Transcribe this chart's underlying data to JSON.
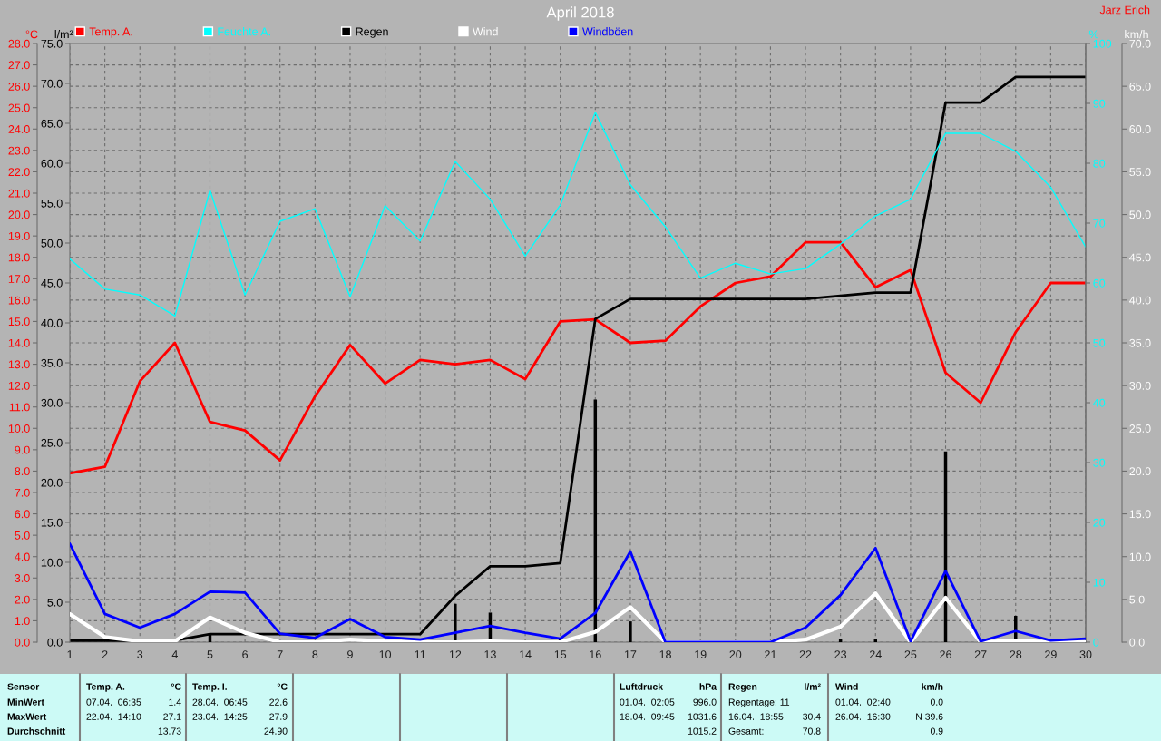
{
  "chart_data": [
    {
      "type": "line",
      "title": "April 2018",
      "x": [
        1,
        2,
        3,
        4,
        5,
        6,
        7,
        8,
        9,
        10,
        11,
        12,
        13,
        14,
        15,
        16,
        17,
        18,
        19,
        20,
        21,
        22,
        23,
        24,
        25,
        26,
        27,
        28,
        29,
        30
      ],
      "xlim": [
        1,
        30
      ],
      "xticks": [
        1,
        2,
        3,
        4,
        5,
        6,
        7,
        8,
        9,
        10,
        11,
        12,
        13,
        14,
        15,
        16,
        17,
        18,
        19,
        20,
        21,
        22,
        23,
        24,
        25,
        26,
        27,
        28,
        29,
        30
      ],
      "ylabel": "°C",
      "y2label": "l/m²",
      "y3label": "%",
      "ylim": [
        0,
        28
      ],
      "yticks": [
        {
          "value": 0,
          "label": "0.0"
        },
        {
          "value": 1,
          "label": "1.0"
        },
        {
          "value": 2,
          "label": "2.0"
        },
        {
          "value": 3,
          "label": "3.0"
        },
        {
          "value": 4,
          "label": "4.0"
        },
        {
          "value": 5,
          "label": "5.0"
        },
        {
          "value": 6,
          "label": "6.0"
        },
        {
          "value": 7,
          "label": "7.0"
        },
        {
          "value": 8,
          "label": "8.0"
        },
        {
          "value": 9,
          "label": "9.0"
        },
        {
          "value": 10,
          "label": "10.0"
        },
        {
          "value": 11,
          "label": "11.0"
        },
        {
          "value": 12,
          "label": "12.0"
        },
        {
          "value": 13,
          "label": "13.0"
        },
        {
          "value": 14,
          "label": "14.0"
        },
        {
          "value": 15,
          "label": "15.0"
        },
        {
          "value": 16,
          "label": "16.0"
        },
        {
          "value": 17,
          "label": "17.0"
        },
        {
          "value": 18,
          "label": "18.0"
        },
        {
          "value": 19,
          "label": "19.0"
        },
        {
          "value": 20,
          "label": "20.0"
        },
        {
          "value": 21,
          "label": "21.0"
        },
        {
          "value": 22,
          "label": "22.0"
        },
        {
          "value": 23,
          "label": "23.0"
        },
        {
          "value": 24,
          "label": "24.0"
        },
        {
          "value": 25,
          "label": "25.0"
        },
        {
          "value": 26,
          "label": "26.0"
        },
        {
          "value": 27,
          "label": "27.0"
        },
        {
          "value": 28,
          "label": "28.0"
        }
      ],
      "y2lim": [
        0,
        75
      ],
      "y2ticks": [
        {
          "value": 0,
          "label": "0.0"
        },
        {
          "value": 5,
          "label": "5.0"
        },
        {
          "value": 10,
          "label": "10.0"
        },
        {
          "value": 15,
          "label": "15.0"
        },
        {
          "value": 20,
          "label": "20.0"
        },
        {
          "value": 25,
          "label": "25.0"
        },
        {
          "value": 30,
          "label": "30.0"
        },
        {
          "value": 35,
          "label": "35.0"
        },
        {
          "value": 40,
          "label": "40.0"
        },
        {
          "value": 45,
          "label": "45.0"
        },
        {
          "value": 50,
          "label": "50.0"
        },
        {
          "value": 55,
          "label": "55.0"
        },
        {
          "value": 60,
          "label": "60.0"
        },
        {
          "value": 65,
          "label": "65.0"
        },
        {
          "value": 70,
          "label": "70.0"
        },
        {
          "value": 75,
          "label": "75.0"
        }
      ],
      "y3lim": [
        0,
        100
      ],
      "y3ticks": [
        0,
        10,
        20,
        30,
        40,
        50,
        60,
        70,
        80,
        90,
        100
      ],
      "grid": true,
      "legend": "top",
      "series": [
        {
          "name": "Temp. A.",
          "color": "#ff0000",
          "values": [
            7.9,
            8.2,
            12.2,
            14.0,
            10.3,
            9.9,
            8.5,
            11.5,
            13.9,
            12.1,
            13.2,
            13.0,
            13.2,
            12.3,
            15.0,
            15.1,
            14.0,
            14.1,
            15.7,
            16.8,
            17.1,
            18.7,
            18.7,
            16.6,
            17.4,
            12.6,
            11.2,
            14.5,
            16.8,
            16.8
          ]
        },
        {
          "name": "Feuchte A.",
          "color": "#00ffff",
          "axis": "y3",
          "values": [
            64,
            59,
            58,
            54.5,
            75.5,
            58,
            70.3,
            72.4,
            57.7,
            72.9,
            67,
            80.3,
            74,
            64.5,
            73,
            88.5,
            76.4,
            69.4,
            60.8,
            63.3,
            61.5,
            62.4,
            66.5,
            71.2,
            74,
            85,
            85,
            82,
            76,
            66
          ]
        },
        {
          "name": "Regen",
          "color": "#000000",
          "axis": "y2",
          "values": [
            0.2,
            0.2,
            0.2,
            0.2,
            1.0,
            1.0,
            1.0,
            1.0,
            1.0,
            1.0,
            1.0,
            5.8,
            9.5,
            9.5,
            9.9,
            40.5,
            43.0,
            43.0,
            43.0,
            43.0,
            43.0,
            43.0,
            43.4,
            43.8,
            43.8,
            67.6,
            67.6,
            70.8,
            70.8,
            70.8
          ]
        },
        {
          "type": "bar",
          "color": "#000000",
          "axis": "y2",
          "values": [
            0,
            0,
            0,
            0,
            1.0,
            0,
            0,
            0,
            0,
            0,
            0,
            4.8,
            3.7,
            0,
            0.4,
            30.4,
            2.6,
            0,
            0,
            0,
            0,
            0,
            0.4,
            0.4,
            0,
            23.9,
            0,
            3.3,
            0,
            0
          ]
        }
      ],
      "annotations": [
        "Jarz Erich",
        "Sensor\nMinWert\nMaxWert\nDurchschnitt",
        "Temp. A.\n07.04.  06:35\n22.04.  14:10",
        "°C\n1.4\n27.1\n13.73",
        "Temp. I.\n28.04.  06:45\n23.04.  14:25",
        "°C\n22.6\n27.9\n24.90",
        "Luftdruck\n01.04.  02:05\n18.04.  09:45",
        "hPa\n996.0\n1031.6\n1015.2",
        "Regen\nRegentage: 11\n16.04.  18:55\nGesamt:",
        "l/m²\n\n30.4\n70.8",
        "Wind\n01.04.  02:40\n26.04.  16:30",
        "km/h\n0.0\nN 39.6\n0.9"
      ]
    },
    {
      "type": "line",
      "tick_labels": "y",
      "legend": "top",
      "x": [
        1,
        2,
        3,
        4,
        5,
        6,
        7,
        8,
        9,
        10,
        11,
        12,
        13,
        14,
        15,
        16,
        17,
        18,
        19,
        20,
        21,
        22,
        23,
        24,
        25,
        26,
        27,
        28,
        29,
        30
      ],
      "xlim": [
        1,
        30
      ],
      "ylabel": "km/h",
      "ylim": [
        0,
        70
      ],
      "yticks": [
        {
          "value": 0,
          "label": "0.0"
        },
        {
          "value": 5,
          "label": "5.0"
        },
        {
          "value": 10,
          "label": "10.0"
        },
        {
          "value": 15,
          "label": "15.0"
        },
        {
          "value": 20,
          "label": "20.0"
        },
        {
          "value": 25,
          "label": "25.0"
        },
        {
          "value": 30,
          "label": "30.0"
        },
        {
          "value": 35,
          "label": "35.0"
        },
        {
          "value": 40,
          "label": "40.0"
        },
        {
          "value": 45,
          "label": "45.0"
        },
        {
          "value": 50,
          "label": "50.0"
        },
        {
          "value": 55,
          "label": "55.0"
        },
        {
          "value": 60,
          "label": "60.0"
        },
        {
          "value": 65,
          "label": "65.0"
        },
        {
          "value": 70,
          "label": "70.0"
        }
      ],
      "series": [
        {
          "name": "Wind",
          "color": "#ffffff",
          "values": [
            3.3,
            0.6,
            0.1,
            0.1,
            2.9,
            1.1,
            0,
            0,
            0.3,
            0.1,
            0,
            0,
            0.1,
            0,
            0,
            1.2,
            4.1,
            0,
            0,
            0,
            0,
            0.3,
            1.8,
            5.7,
            0,
            5.2,
            0,
            0.2,
            0,
            0
          ]
        },
        {
          "name": "Windböen",
          "color": "#0000ff",
          "values": [
            11.5,
            3.3,
            1.7,
            3.3,
            5.9,
            5.8,
            1.0,
            0.5,
            2.7,
            0.6,
            0.3,
            1.1,
            1.9,
            1.1,
            0.4,
            3.4,
            10.6,
            0,
            0,
            0,
            0,
            1.7,
            5.5,
            11.0,
            0.1,
            8.3,
            0.1,
            1.3,
            0.2,
            0.4
          ]
        }
      ]
    }
  ]
}
